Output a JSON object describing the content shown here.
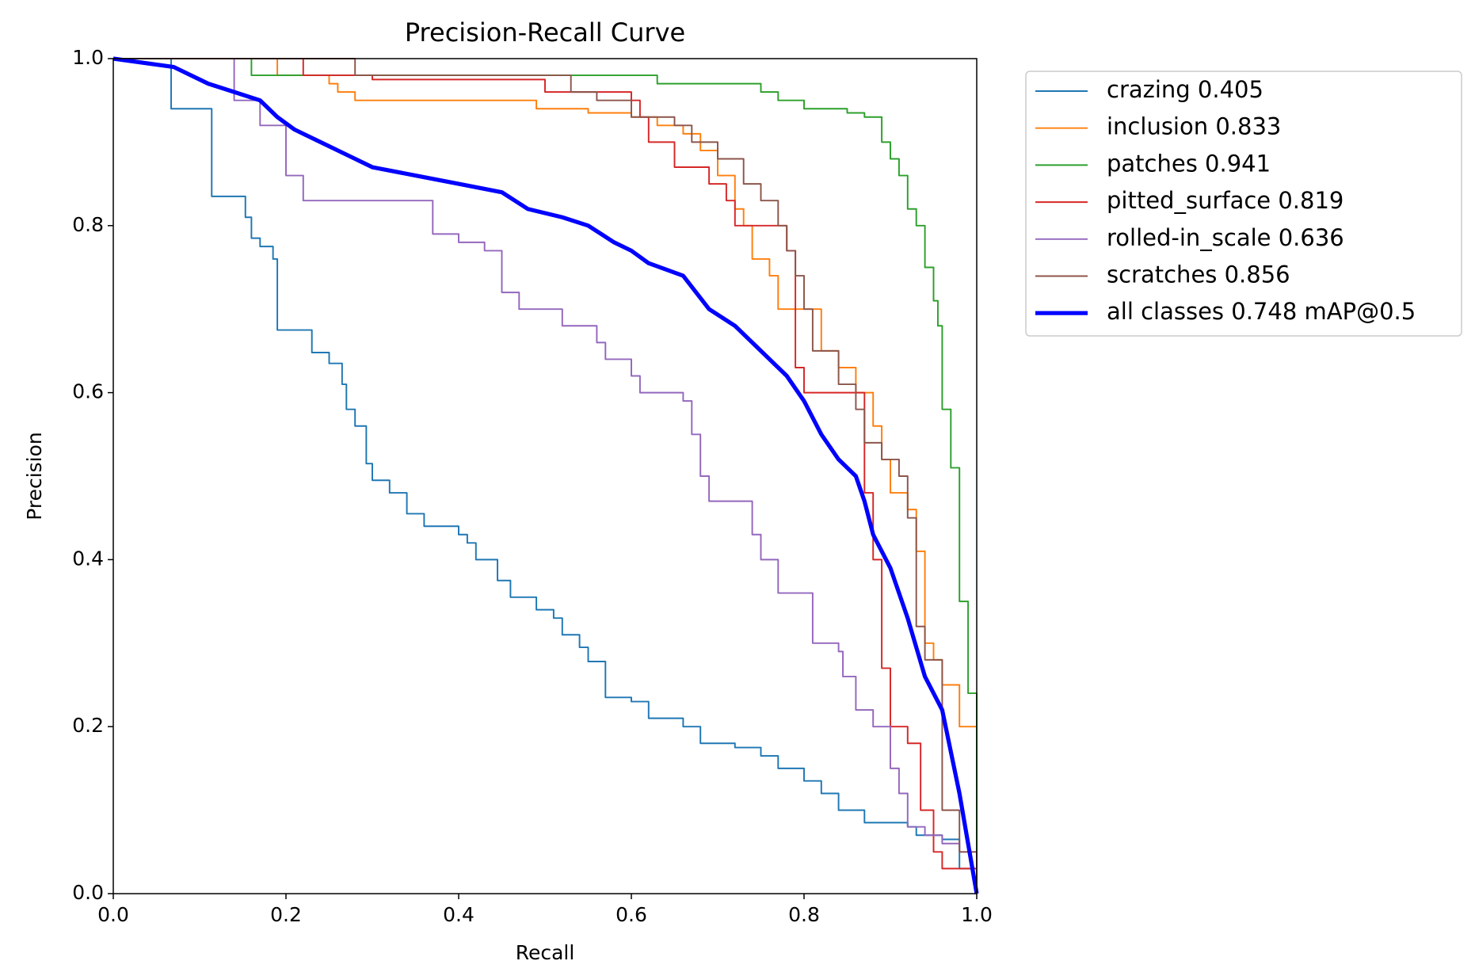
{
  "chart_data": {
    "type": "line",
    "title": "Precision-Recall Curve",
    "x_label": "Recall",
    "y_label": "Precision",
    "xlim": [
      0,
      1
    ],
    "ylim": [
      0,
      1
    ],
    "xticks": [
      {
        "value": 0,
        "label": "0.0"
      },
      0.2,
      0.4,
      0.6,
      0.8,
      {
        "value": 1,
        "label": "1.0"
      }
    ],
    "yticks": [
      {
        "value": 0,
        "label": "0.0"
      },
      0.2,
      0.4,
      0.6,
      0.8,
      {
        "value": 1,
        "label": "1.0"
      }
    ],
    "legend": "outside upper right",
    "series": [
      {
        "name": "crazing 0.405",
        "color": "#1f77b4",
        "linewidth": 1.5,
        "step": true,
        "x": [
          0,
          0.067,
          0.114,
          0.153,
          0.16,
          0.17,
          0.185,
          0.19,
          0.23,
          0.25,
          0.265,
          0.27,
          0.28,
          0.293,
          0.3,
          0.32,
          0.34,
          0.36,
          0.4,
          0.41,
          0.42,
          0.445,
          0.46,
          0.49,
          0.51,
          0.52,
          0.54,
          0.55,
          0.57,
          0.6,
          0.62,
          0.66,
          0.68,
          0.72,
          0.75,
          0.77,
          0.8,
          0.82,
          0.84,
          0.87,
          0.92,
          0.93,
          0.96,
          0.98,
          1
        ],
        "values": [
          1,
          0.94,
          0.835,
          0.81,
          0.785,
          0.775,
          0.76,
          0.675,
          0.648,
          0.635,
          0.61,
          0.58,
          0.56,
          0.515,
          0.495,
          0.48,
          0.455,
          0.44,
          0.43,
          0.42,
          0.4,
          0.375,
          0.355,
          0.34,
          0.33,
          0.31,
          0.295,
          0.278,
          0.235,
          0.23,
          0.21,
          0.2,
          0.18,
          0.175,
          0.165,
          0.15,
          0.135,
          0.12,
          0.1,
          0.085,
          0.08,
          0.07,
          0.065,
          0.03,
          0
        ]
      },
      {
        "name": "inclusion 0.833",
        "color": "#ff7f0e",
        "linewidth": 1.5,
        "step": true,
        "x": [
          0,
          0.19,
          0.25,
          0.26,
          0.28,
          0.47,
          0.49,
          0.55,
          0.6,
          0.63,
          0.66,
          0.68,
          0.7,
          0.72,
          0.73,
          0.74,
          0.76,
          0.77,
          0.8,
          0.82,
          0.84,
          0.86,
          0.88,
          0.89,
          0.9,
          0.92,
          0.93,
          0.94,
          0.95,
          0.96,
          0.98,
          1
        ],
        "values": [
          1,
          0.98,
          0.97,
          0.96,
          0.95,
          0.95,
          0.94,
          0.935,
          0.93,
          0.92,
          0.91,
          0.89,
          0.86,
          0.82,
          0.8,
          0.76,
          0.74,
          0.7,
          0.7,
          0.65,
          0.63,
          0.6,
          0.56,
          0.52,
          0.48,
          0.46,
          0.41,
          0.3,
          0.28,
          0.25,
          0.2,
          0
        ]
      },
      {
        "name": "patches 0.941",
        "color": "#2ca02c",
        "linewidth": 1.5,
        "step": true,
        "x": [
          0,
          0.16,
          0.63,
          0.75,
          0.77,
          0.8,
          0.85,
          0.87,
          0.89,
          0.9,
          0.91,
          0.92,
          0.93,
          0.94,
          0.95,
          0.955,
          0.96,
          0.97,
          0.98,
          0.99,
          1
        ],
        "values": [
          1,
          0.98,
          0.97,
          0.96,
          0.95,
          0.94,
          0.935,
          0.93,
          0.9,
          0.88,
          0.86,
          0.82,
          0.8,
          0.75,
          0.71,
          0.68,
          0.58,
          0.51,
          0.35,
          0.24,
          0
        ]
      },
      {
        "name": "pitted_surface 0.819",
        "color": "#d62728",
        "linewidth": 1.5,
        "step": true,
        "x": [
          0,
          0.22,
          0.3,
          0.5,
          0.6,
          0.61,
          0.62,
          0.65,
          0.69,
          0.71,
          0.72,
          0.78,
          0.79,
          0.8,
          0.87,
          0.88,
          0.89,
          0.9,
          0.92,
          0.935,
          0.95,
          0.96,
          1
        ],
        "values": [
          1,
          0.98,
          0.975,
          0.96,
          0.95,
          0.93,
          0.9,
          0.87,
          0.85,
          0.83,
          0.8,
          0.77,
          0.63,
          0.6,
          0.48,
          0.4,
          0.27,
          0.2,
          0.18,
          0.1,
          0.05,
          0.03,
          0
        ]
      },
      {
        "name": "rolled-in_scale 0.636",
        "color": "#9467bd",
        "linewidth": 1.5,
        "step": true,
        "x": [
          0,
          0.14,
          0.17,
          0.2,
          0.22,
          0.37,
          0.4,
          0.43,
          0.45,
          0.47,
          0.52,
          0.56,
          0.57,
          0.6,
          0.61,
          0.66,
          0.67,
          0.68,
          0.69,
          0.74,
          0.75,
          0.77,
          0.81,
          0.84,
          0.845,
          0.86,
          0.88,
          0.9,
          0.91,
          0.92,
          0.94,
          0.96,
          0.98,
          1
        ],
        "values": [
          1,
          0.95,
          0.92,
          0.86,
          0.83,
          0.79,
          0.78,
          0.77,
          0.72,
          0.7,
          0.68,
          0.66,
          0.64,
          0.62,
          0.6,
          0.59,
          0.55,
          0.5,
          0.47,
          0.43,
          0.4,
          0.36,
          0.3,
          0.29,
          0.26,
          0.22,
          0.2,
          0.15,
          0.12,
          0.08,
          0.07,
          0.06,
          0.05,
          0
        ]
      },
      {
        "name": "scratches 0.856",
        "color": "#8c564b",
        "linewidth": 1.5,
        "step": true,
        "x": [
          0,
          0.28,
          0.53,
          0.56,
          0.6,
          0.65,
          0.67,
          0.7,
          0.73,
          0.75,
          0.77,
          0.78,
          0.79,
          0.8,
          0.81,
          0.84,
          0.86,
          0.87,
          0.89,
          0.91,
          0.92,
          0.93,
          0.94,
          0.96,
          0.98,
          1
        ],
        "values": [
          1,
          0.98,
          0.96,
          0.95,
          0.93,
          0.92,
          0.9,
          0.88,
          0.85,
          0.83,
          0.8,
          0.77,
          0.74,
          0.7,
          0.65,
          0.61,
          0.58,
          0.54,
          0.52,
          0.5,
          0.45,
          0.32,
          0.28,
          0.1,
          0.05,
          0
        ]
      },
      {
        "name": "all classes 0.748 mAP@0.5",
        "color": "#0000ff",
        "linewidth": 4,
        "step": false,
        "x": [
          0,
          0.07,
          0.11,
          0.14,
          0.17,
          0.19,
          0.21,
          0.24,
          0.27,
          0.3,
          0.35,
          0.4,
          0.45,
          0.48,
          0.52,
          0.55,
          0.58,
          0.6,
          0.62,
          0.66,
          0.69,
          0.72,
          0.75,
          0.78,
          0.8,
          0.82,
          0.84,
          0.86,
          0.87,
          0.88,
          0.9,
          0.92,
          0.94,
          0.96,
          0.98,
          0.99,
          1
        ],
        "values": [
          1,
          0.99,
          0.97,
          0.96,
          0.95,
          0.93,
          0.915,
          0.9,
          0.885,
          0.87,
          0.86,
          0.85,
          0.84,
          0.82,
          0.81,
          0.8,
          0.78,
          0.77,
          0.755,
          0.74,
          0.7,
          0.68,
          0.65,
          0.62,
          0.59,
          0.55,
          0.52,
          0.5,
          0.47,
          0.43,
          0.39,
          0.33,
          0.26,
          0.22,
          0.12,
          0.06,
          0
        ]
      }
    ]
  }
}
